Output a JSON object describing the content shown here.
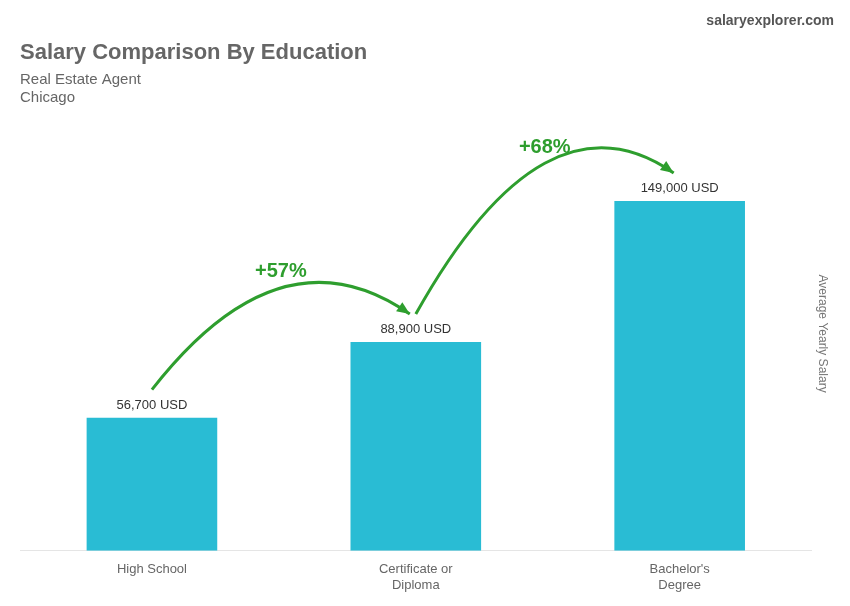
{
  "chart_data": {
    "type": "bar",
    "title": "Salary Comparison By Education",
    "subtitle": [
      "Real Estate Agent",
      "Chicago"
    ],
    "ylabel": "Average Yearly Salary",
    "categories": [
      "High School",
      "Certificate or\nDiploma",
      "Bachelor's\nDegree"
    ],
    "values": [
      56700,
      88900,
      149000
    ],
    "value_labels": [
      "56,700 USD",
      "88,900 USD",
      "149,000 USD"
    ],
    "data_labels": true,
    "color": "#29bcd4",
    "ylim": [
      0,
      185000
    ],
    "tick_labels": "x",
    "grid": false,
    "annotations": [
      {
        "text": "salaryexplorer.com"
      },
      {
        "text": "+57%",
        "from": "High School",
        "to": "Certificate or\nDiploma"
      },
      {
        "text": "+68%",
        "from": "Certificate or\nDiploma",
        "to": "Bachelor's\nDegree"
      }
    ]
  }
}
